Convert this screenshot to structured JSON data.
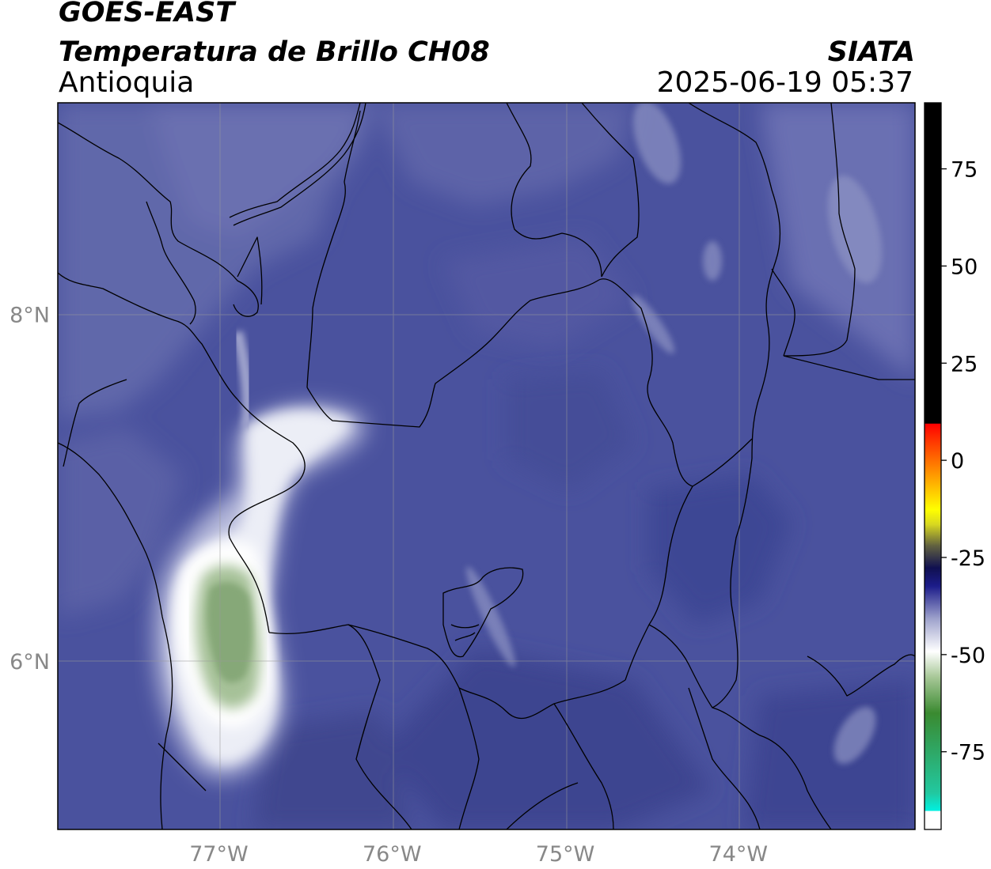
{
  "header": {
    "satellite": "GOES-EAST",
    "product": "Temperatura de Brillo CH08",
    "region": "Antioquia",
    "organization": "SIATA",
    "datetime": "2025-06-19 05:37"
  },
  "axes": {
    "lat_labels": [
      {
        "value": 8,
        "label": "8°N"
      },
      {
        "value": 6,
        "label": "6°N"
      }
    ],
    "lon_labels": [
      {
        "value": -77,
        "label": "77°W"
      },
      {
        "value": -76,
        "label": "76°W"
      },
      {
        "value": -75,
        "label": "75°W"
      },
      {
        "value": -74,
        "label": "74°W"
      }
    ],
    "extent": {
      "lon_min": -77.93,
      "lon_max": -72.98,
      "lat_min": 5.03,
      "lat_max": 9.22
    }
  },
  "colorbar": {
    "range": [
      -95,
      92
    ],
    "tick_labels": [
      {
        "value": 75,
        "label": "75"
      },
      {
        "value": 50,
        "label": "50"
      },
      {
        "value": 25,
        "label": "25"
      },
      {
        "value": 0,
        "label": "0"
      },
      {
        "value": -25,
        "label": "-25"
      },
      {
        "value": -50,
        "label": "-50"
      },
      {
        "value": -75,
        "label": "-75"
      }
    ]
  },
  "colors": {
    "background_blue": "#4a529c",
    "grid": "#9a9a9a",
    "axis_label": "#888888",
    "cold_cloud": "#86a876"
  }
}
